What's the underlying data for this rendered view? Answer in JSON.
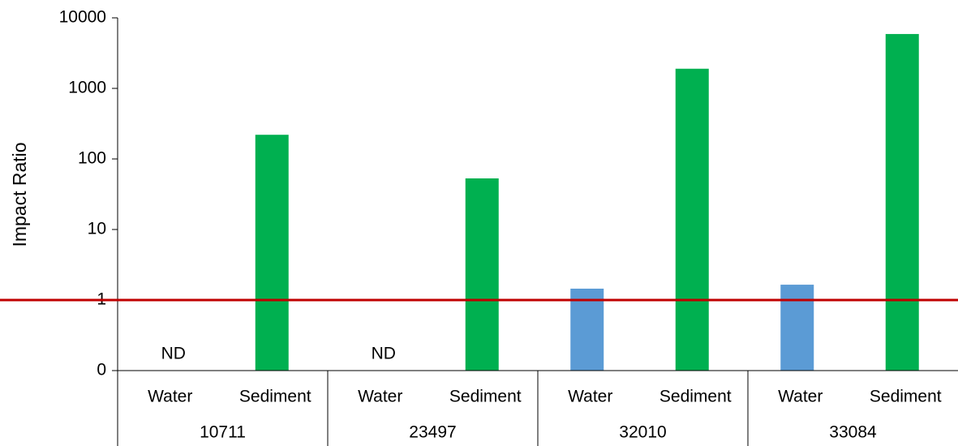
{
  "chart_data": {
    "type": "bar",
    "y_label": "Impact Ratio",
    "categories": [
      "Water",
      "Sediment",
      "Water",
      "Sediment",
      "Water",
      "Sediment",
      "Water",
      "Sediment"
    ],
    "groups": [
      "10711",
      "23497",
      "32010",
      "33084"
    ],
    "values": [
      null,
      220,
      null,
      53,
      1.45,
      1900,
      1.65,
      5900
    ],
    "value_labels": [
      "ND",
      null,
      "ND",
      null,
      null,
      null,
      null,
      null
    ],
    "colors": [
      "#5b9bd5",
      "#00b050",
      "#5b9bd5",
      "#00b050",
      "#5b9bd5",
      "#00b050",
      "#5b9bd5",
      "#00b050"
    ],
    "log_scale": true,
    "ylim": [
      0.1,
      10000
    ],
    "yticks": [
      {
        "value": 0.1,
        "label": "0"
      },
      1,
      10,
      100,
      1000,
      10000
    ],
    "reference_line": {
      "value": 1,
      "color": "#c00000"
    }
  }
}
